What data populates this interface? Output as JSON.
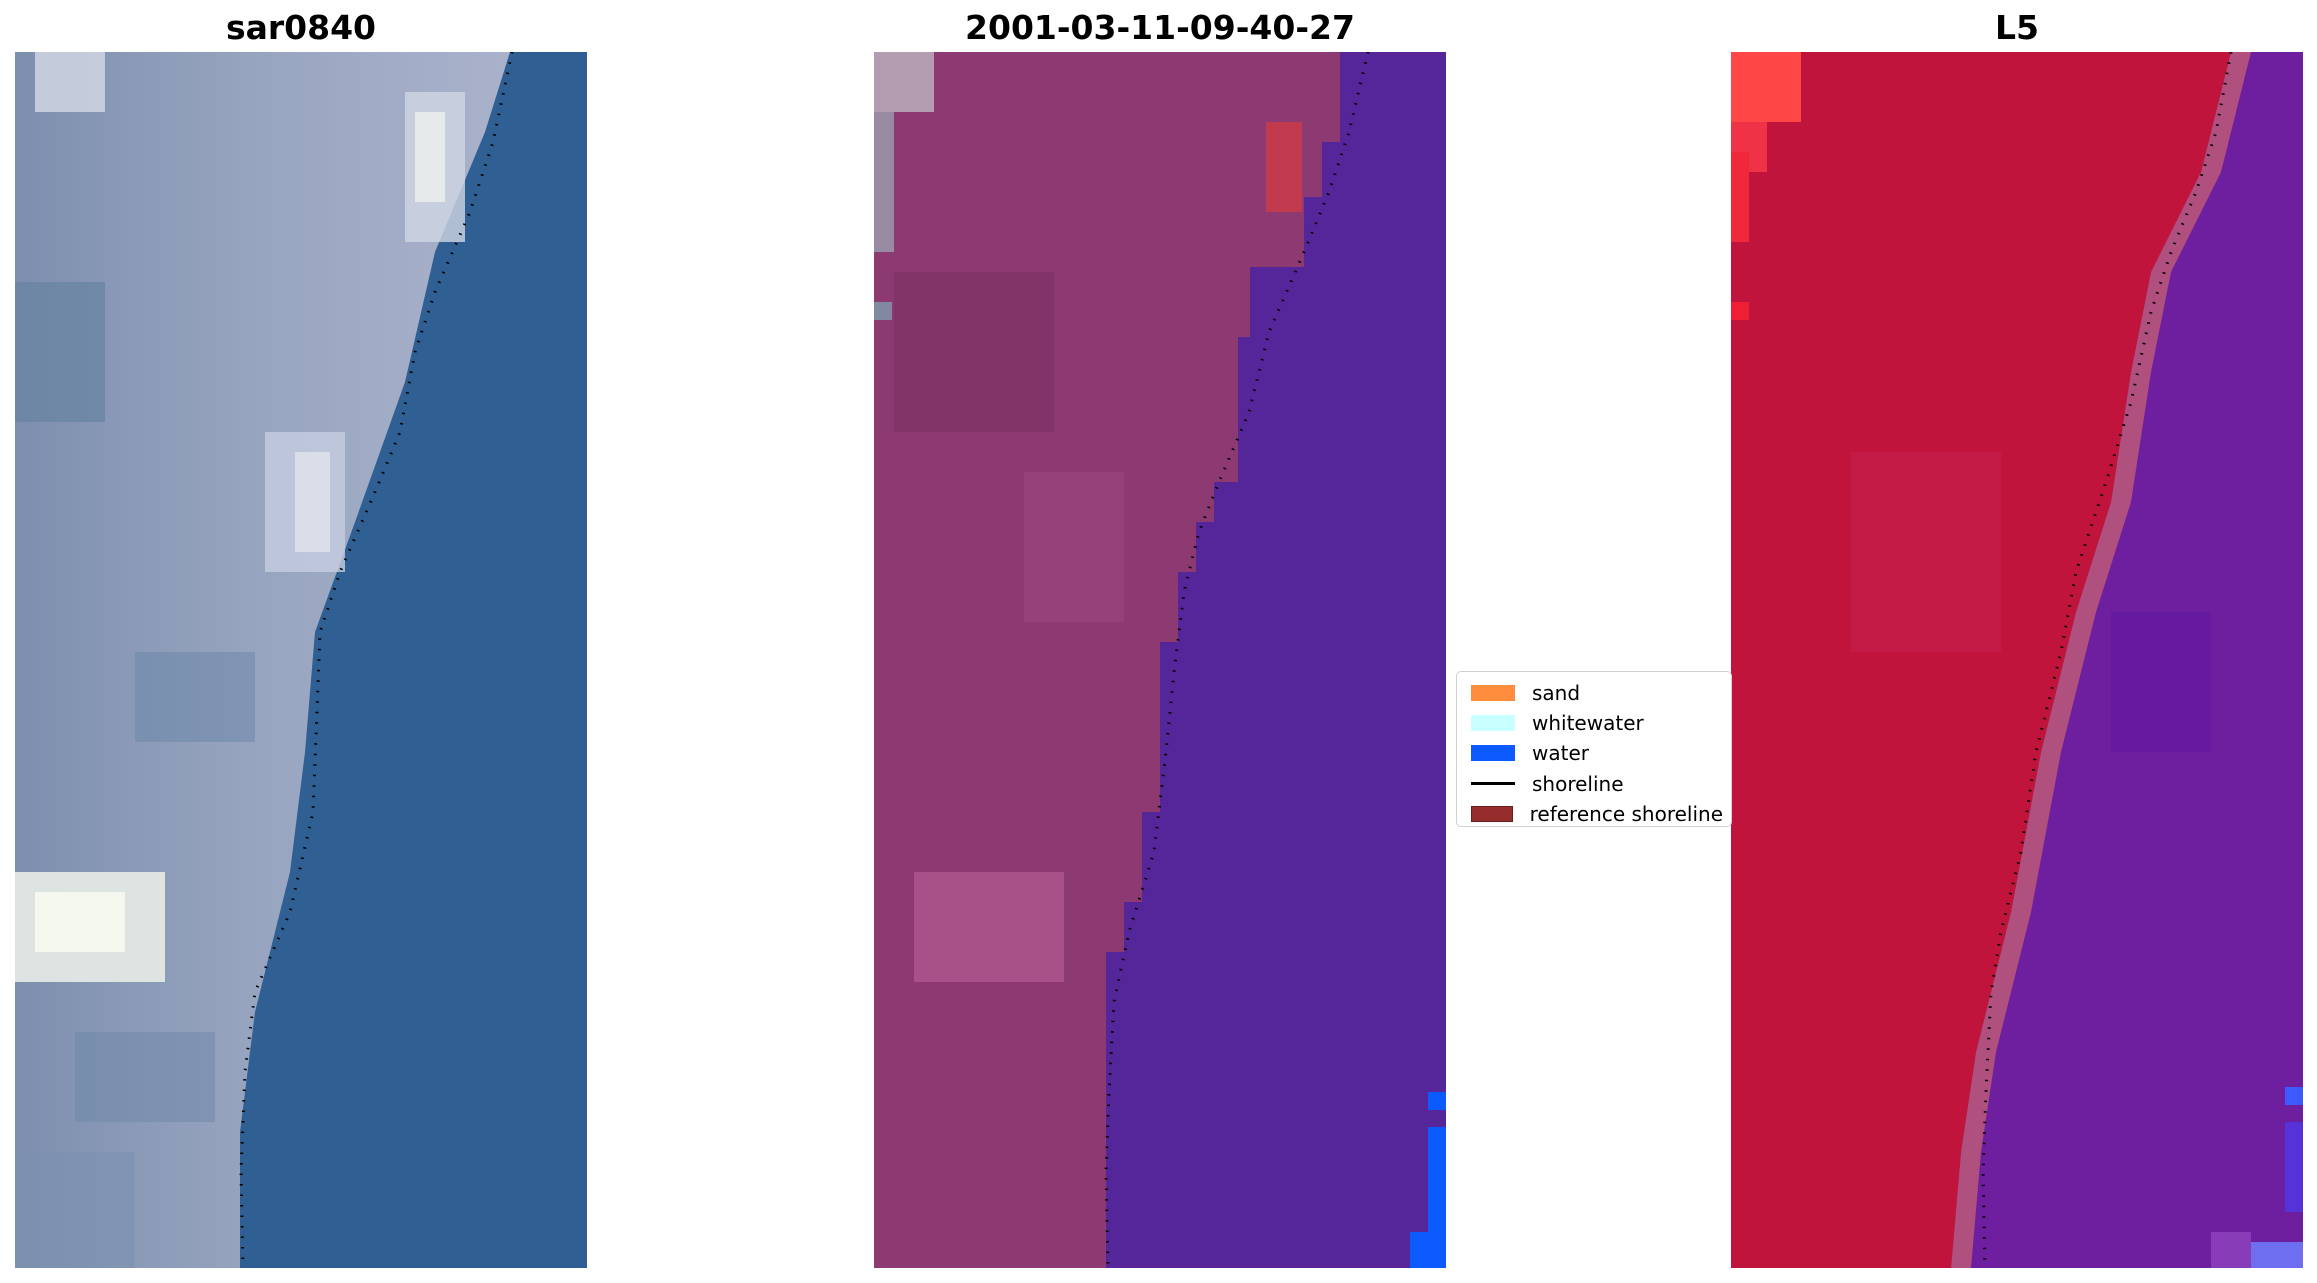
{
  "panels": [
    {
      "title": "sar0840",
      "view": "rgb-image"
    },
    {
      "title": "2001-03-11-09-40-27",
      "view": "classified-image"
    },
    {
      "title": "L5",
      "view": "false-color-image"
    }
  ],
  "legend": {
    "items": [
      {
        "label": "sand",
        "kind": "patch",
        "color": "#ff8c3c"
      },
      {
        "label": "whitewater",
        "kind": "patch",
        "color": "#c8ffff"
      },
      {
        "label": "water",
        "kind": "patch",
        "color": "#0a5aff"
      },
      {
        "label": "shoreline",
        "kind": "line",
        "color": "#000000"
      },
      {
        "label": "reference shoreline",
        "kind": "patch",
        "color": "#962d2d"
      }
    ]
  },
  "colors": {
    "rgb_water": "#2f5f93",
    "rgb_land": "#8a9ab8",
    "class_land": "#8e3a72",
    "class_water": "#55269a",
    "class_water_pixels": "#0a5aff",
    "fc_land": "#c0143c",
    "fc_water": "#6e1fa0",
    "shoreline_dots": "#000000"
  }
}
